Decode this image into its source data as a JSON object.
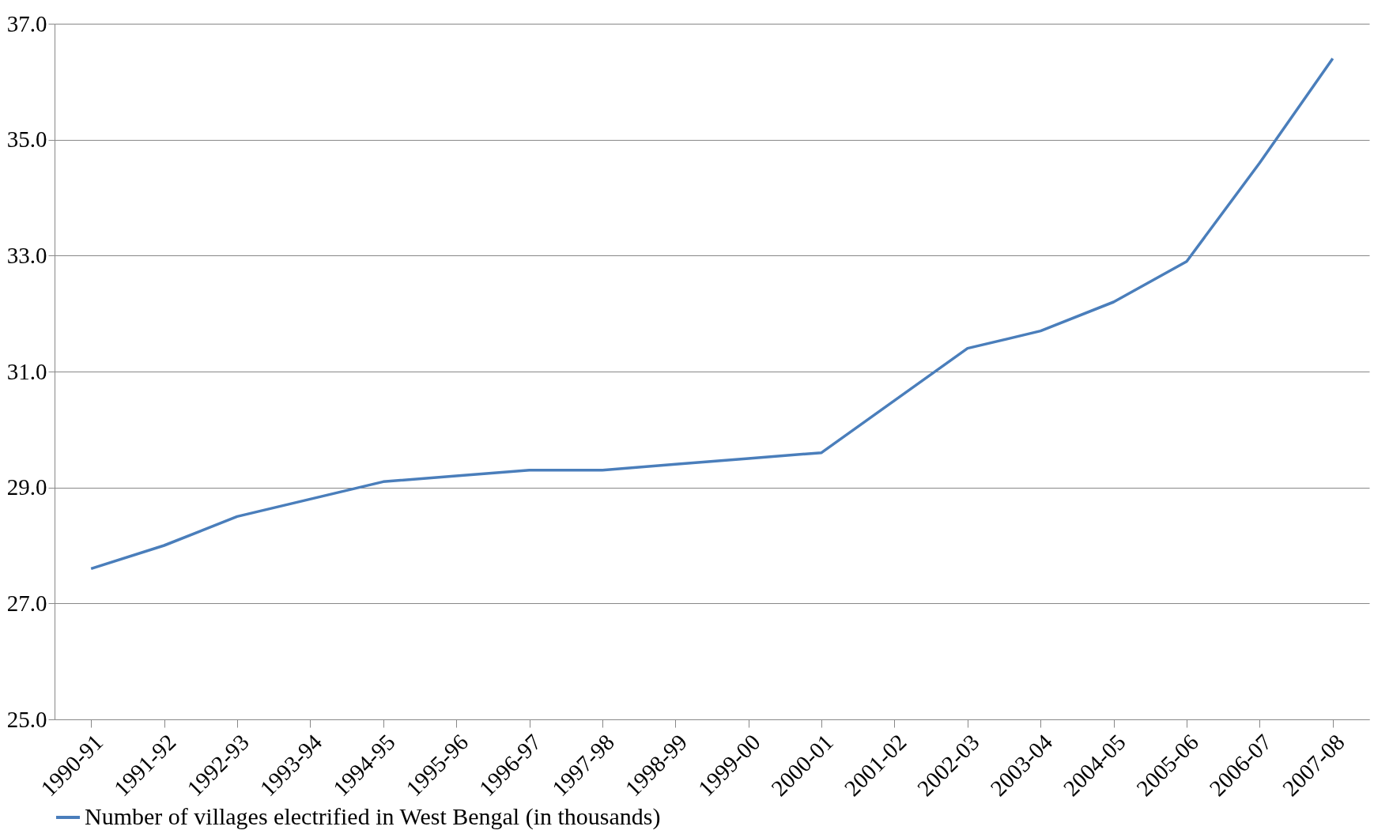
{
  "chart_data": {
    "type": "line",
    "categories": [
      "1990-91",
      "1991-92",
      "1992-93",
      "1993-94",
      "1994-95",
      "1995-96",
      "1996-97",
      "1997-98",
      "1998-99",
      "1999-00",
      "2000-01",
      "2001-02",
      "2002-03",
      "2003-04",
      "2004-05",
      "2005-06",
      "2006-07",
      "2007-08"
    ],
    "series": [
      {
        "name": "Number of villages electrified in West Bengal (in thousands)",
        "color": "#4a7ebb",
        "values": [
          27.6,
          28.0,
          28.5,
          28.8,
          29.1,
          29.2,
          29.3,
          29.3,
          29.4,
          29.5,
          29.6,
          30.5,
          31.4,
          31.7,
          32.2,
          32.9,
          34.6,
          36.4
        ]
      }
    ],
    "ylim": [
      25,
      37
    ],
    "yticks": [
      {
        "value": 25,
        "label": "25.0"
      },
      {
        "value": 27,
        "label": "27.0"
      },
      {
        "value": 29,
        "label": "29.0"
      },
      {
        "value": 31,
        "label": "31.0"
      },
      {
        "value": 33,
        "label": "33.0"
      },
      {
        "value": 35,
        "label": "35.0"
      },
      {
        "value": 37,
        "label": "37.0"
      }
    ],
    "grid": "y",
    "legend": "bottom",
    "marker": "none",
    "line_style": "solid"
  }
}
